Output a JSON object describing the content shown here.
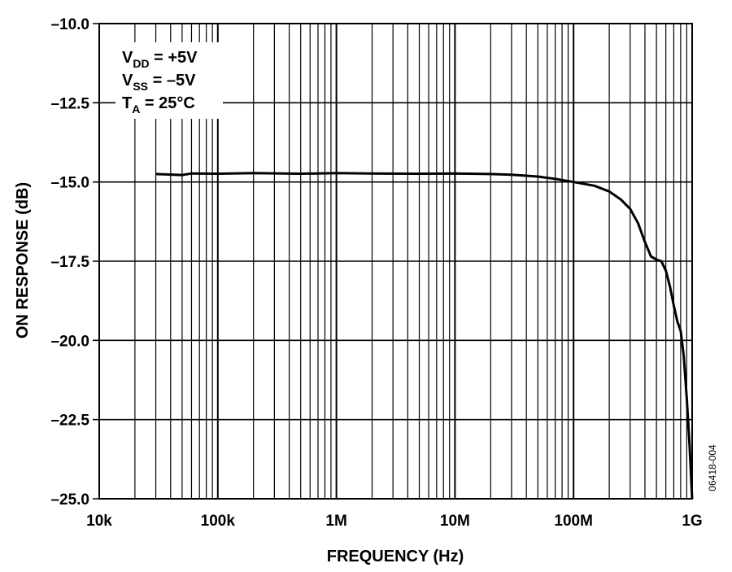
{
  "chart_data": {
    "type": "line",
    "xscale": "log",
    "xlim": [
      10000,
      1000000000
    ],
    "ylim": [
      -25.0,
      -10.0
    ],
    "xlabel": "FREQUENCY (Hz)",
    "ylabel": "ON RESPONSE (dB)",
    "x_ticks": [
      {
        "value": 10000,
        "label": "10k"
      },
      {
        "value": 100000,
        "label": "100k"
      },
      {
        "value": 1000000,
        "label": "1M"
      },
      {
        "value": 10000000,
        "label": "10M"
      },
      {
        "value": 100000000,
        "label": "100M"
      },
      {
        "value": 1000000000,
        "label": "1G"
      }
    ],
    "y_ticks": [
      {
        "value": -10.0,
        "label": "–10.0"
      },
      {
        "value": -12.5,
        "label": "–12.5"
      },
      {
        "value": -15.0,
        "label": "–15.0"
      },
      {
        "value": -17.5,
        "label": "–17.5"
      },
      {
        "value": -20.0,
        "label": "–20.0"
      },
      {
        "value": -22.5,
        "label": "–22.5"
      },
      {
        "value": -25.0,
        "label": "–25.0"
      }
    ],
    "grid": true,
    "annotations": [
      {
        "main": "V",
        "sub": "DD",
        "rest": " = +5V"
      },
      {
        "main": "V",
        "sub": "SS",
        "rest": " = –5V"
      },
      {
        "main": "T",
        "sub": "A",
        "rest": " = 25°C"
      }
    ],
    "figure_id": "06418-004",
    "series": [
      {
        "x": [
          30000,
          50000,
          60000,
          100000,
          200000,
          500000,
          1000000,
          2000000,
          5000000,
          10000000,
          20000000,
          30000000,
          50000000,
          70000000,
          100000000,
          150000000,
          200000000,
          250000000,
          300000000,
          350000000,
          400000000,
          450000000,
          500000000,
          550000000,
          600000000,
          650000000,
          700000000,
          750000000,
          800000000,
          850000000,
          900000000,
          950000000,
          1000000000
        ],
        "y": [
          -14.75,
          -14.78,
          -14.73,
          -14.74,
          -14.72,
          -14.74,
          -14.72,
          -14.73,
          -14.74,
          -14.73,
          -14.75,
          -14.77,
          -14.83,
          -14.9,
          -15.0,
          -15.12,
          -15.3,
          -15.55,
          -15.85,
          -16.3,
          -16.9,
          -17.35,
          -17.45,
          -17.5,
          -17.8,
          -18.3,
          -18.9,
          -19.4,
          -19.7,
          -20.5,
          -21.8,
          -23.3,
          -25.0
        ]
      }
    ]
  }
}
